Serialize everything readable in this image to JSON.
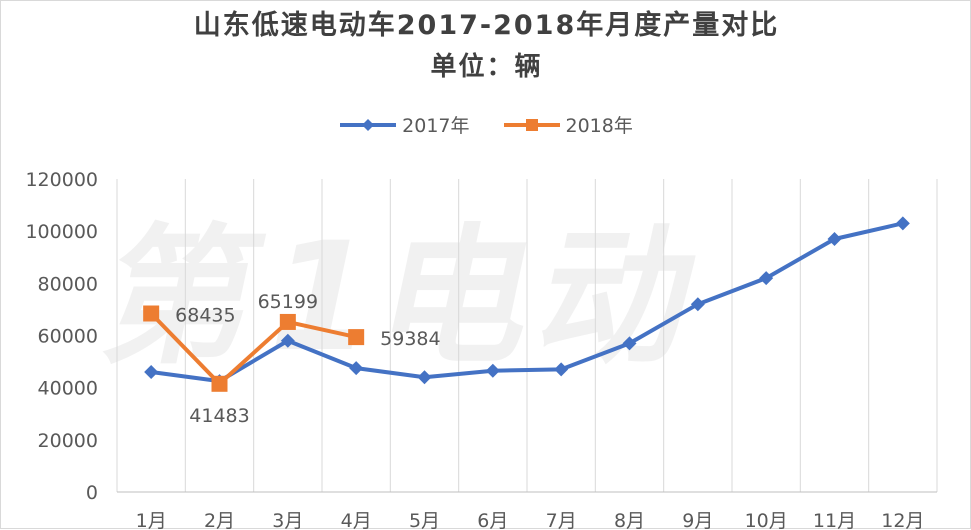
{
  "chart_data": {
    "type": "line",
    "title": "山东低速电动车2017-2018年月度产量对比",
    "subtitle": "单位：辆",
    "categories": [
      "1月",
      "2月",
      "3月",
      "4月",
      "5月",
      "6月",
      "7月",
      "8月",
      "9月",
      "10月",
      "11月",
      "12月"
    ],
    "series": [
      {
        "name": "2017年",
        "values": [
          46000,
          42500,
          58000,
          47500,
          44000,
          46500,
          47000,
          57000,
          72000,
          82000,
          97000,
          103000
        ],
        "color": "#4472c4",
        "marker": "diamond"
      },
      {
        "name": "2018年",
        "values": [
          68435,
          41483,
          65199,
          59384,
          null,
          null,
          null,
          null,
          null,
          null,
          null,
          null
        ],
        "color": "#ed7d31",
        "marker": "square"
      }
    ],
    "data_labels": [
      {
        "series": 1,
        "index": 0,
        "text": "68435",
        "position": "right"
      },
      {
        "series": 1,
        "index": 1,
        "text": "41483",
        "position": "below"
      },
      {
        "series": 1,
        "index": 2,
        "text": "65199",
        "position": "above"
      },
      {
        "series": 1,
        "index": 3,
        "text": "59384",
        "position": "right"
      }
    ],
    "ylim": [
      0,
      120000
    ],
    "yticks": [
      "0",
      "20000",
      "40000",
      "60000",
      "80000",
      "100000",
      "120000"
    ],
    "grid": "vertical",
    "legend_position": "top"
  },
  "watermark": "第1电动",
  "watermark_url": "www.D1EV.com"
}
